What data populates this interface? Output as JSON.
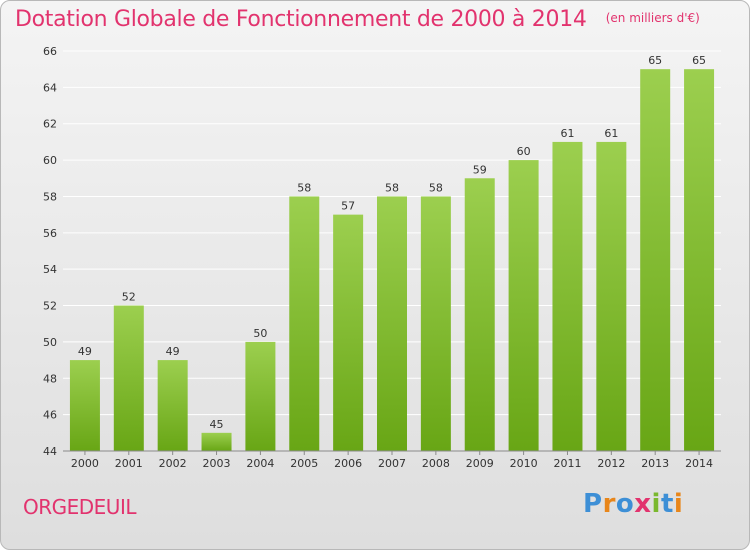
{
  "chart_data": {
    "type": "bar",
    "title": "Dotation Globale de Fonctionnement de 2000 à 2014",
    "subtitle": "(en milliers d'€)",
    "categories": [
      "2000",
      "2001",
      "2002",
      "2003",
      "2004",
      "2005",
      "2006",
      "2007",
      "2008",
      "2009",
      "2010",
      "2011",
      "2012",
      "2013",
      "2014"
    ],
    "values": [
      49,
      52,
      49,
      45,
      50,
      58,
      57,
      58,
      58,
      59,
      60,
      61,
      61,
      65,
      65
    ],
    "ylim": [
      44,
      66
    ],
    "yticks": [
      44,
      46,
      48,
      50,
      52,
      54,
      56,
      58,
      60,
      62,
      64,
      66
    ],
    "grid": true,
    "xlabel": "",
    "ylabel": ""
  },
  "commune": "ORGEDEUIL",
  "logo": {
    "text": "Proxiti",
    "letter_colors": [
      "#3d8fd6",
      "#e8861a",
      "#3d8fd6",
      "#e2336e",
      "#7ab82e",
      "#3d8fd6",
      "#e8861a"
    ]
  },
  "colors": {
    "accent": "#e2336e",
    "bar_top": "#9ccf4f",
    "bar_bottom": "#68a615",
    "grid": "#ffffff",
    "axis_text": "#333333"
  }
}
